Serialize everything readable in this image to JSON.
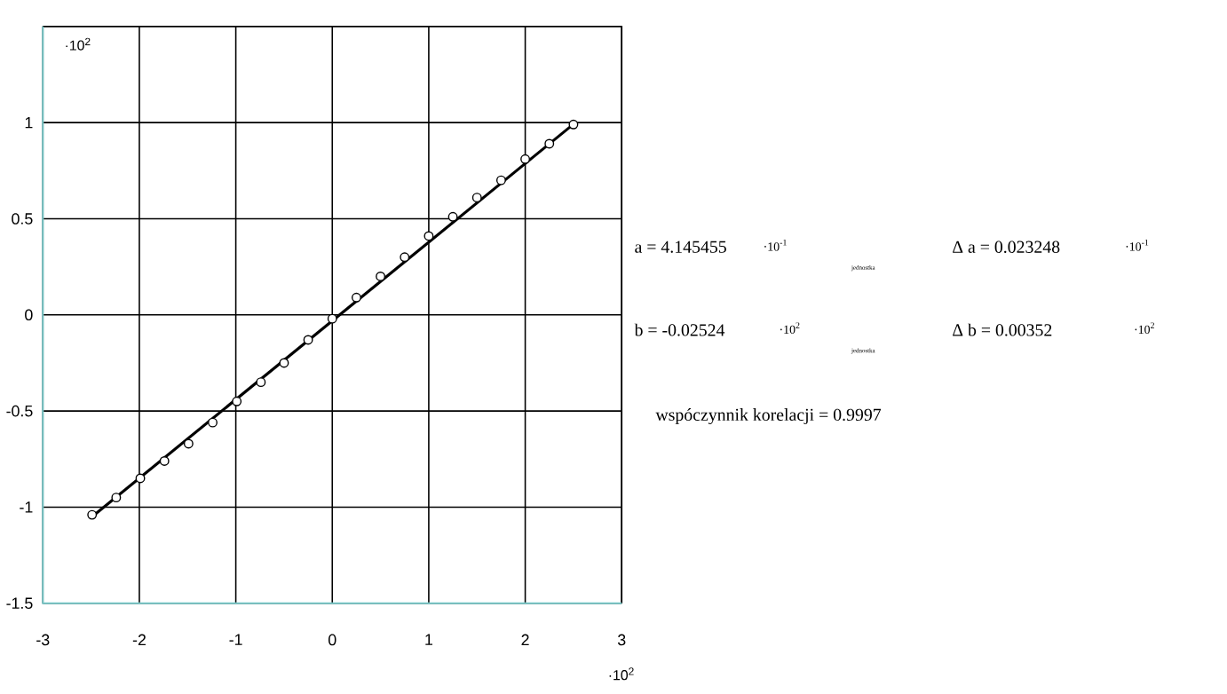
{
  "chart_data": {
    "type": "scatter",
    "xlim": [
      -3,
      3
    ],
    "ylim": [
      -1.5,
      1.5
    ],
    "xticks": [
      -3,
      -2,
      -1,
      0,
      1,
      2,
      3
    ],
    "yticks": [
      -1.5,
      -1,
      -0.5,
      0,
      0.5,
      1,
      {
        "value": 1.5,
        "label": null
      }
    ],
    "grid": true,
    "marker": "circle",
    "series": [
      {
        "type": "scatter",
        "color": "#000000",
        "x": [
          -2.49,
          -2.24,
          -1.99,
          -1.74,
          -1.49,
          -1.24,
          -0.99,
          -0.74,
          -0.5,
          -0.25,
          0,
          0.25,
          0.5,
          0.75,
          1,
          1.25,
          1.5,
          1.75,
          2,
          2.25,
          2.5
        ],
        "values": [
          -1.04,
          -0.95,
          -0.85,
          -0.76,
          -0.67,
          -0.56,
          -0.45,
          -0.35,
          -0.25,
          -0.13,
          -0.02,
          0.09,
          0.2,
          0.3,
          0.41,
          0.51,
          0.61,
          0.7,
          0.81,
          0.89,
          0.99
        ]
      },
      {
        "type": "line",
        "color": "#000000",
        "marker": "none",
        "line_style": "solid",
        "x": [
          -2.49,
          2.52
        ],
        "values": [
          -1.05,
          1.0
        ]
      }
    ],
    "annotations": [
      "·10$^{2}$",
      "·10$^{2}$",
      "a = 4.145455",
      "·10$^{-1}$",
      "jednostka",
      "Δ a = 0.023248",
      "·10$^{-1}$",
      "b = -0.02524",
      "·10$^{2}$",
      "jednostka",
      "Δ b = 0.00352",
      "·10$^{2}$",
      "wspóczynnik korelacji = 0.9997"
    ]
  }
}
